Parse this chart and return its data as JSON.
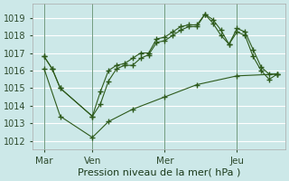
{
  "background_color": "#cce8e8",
  "grid_color": "#ffffff",
  "line_color": "#2d5a1b",
  "title": "Pression niveau de la mer( hPa )",
  "xlim": [
    -0.2,
    15.5
  ],
  "ylim": [
    1011.5,
    1019.8
  ],
  "yticks": [
    1012,
    1013,
    1014,
    1015,
    1016,
    1017,
    1018,
    1019
  ],
  "xtick_positions": [
    0.5,
    3.5,
    8.0,
    12.5
  ],
  "xtick_labels": [
    "Mar",
    "Ven",
    "Mer",
    "Jeu"
  ],
  "vlines": [
    0.5,
    3.5,
    8.0,
    12.5
  ],
  "line_upper_x": [
    0.5,
    1.0,
    1.5,
    3.5,
    4.0,
    4.5,
    5.0,
    5.5,
    6.0,
    6.5,
    7.0,
    7.5,
    8.0,
    8.5,
    9.0,
    9.5,
    10.0,
    10.5,
    11.0,
    11.5,
    12.0,
    12.5,
    13.0,
    13.5,
    14.0,
    14.5,
    15.0
  ],
  "line_upper_y": [
    1016.8,
    1016.1,
    1015.0,
    1013.4,
    1014.8,
    1016.0,
    1016.3,
    1016.4,
    1016.7,
    1017.0,
    1017.0,
    1017.8,
    1017.9,
    1018.2,
    1018.5,
    1018.6,
    1018.6,
    1019.2,
    1018.9,
    1018.3,
    1017.5,
    1018.4,
    1018.2,
    1017.2,
    1016.2,
    1015.8,
    1015.8
  ],
  "line_mid_x": [
    0.5,
    1.0,
    1.5,
    3.5,
    4.0,
    4.5,
    5.0,
    5.5,
    6.0,
    6.5,
    7.0,
    7.5,
    8.0,
    8.5,
    9.0,
    9.5,
    10.0,
    10.5,
    11.0,
    11.5,
    12.0,
    12.5,
    13.0,
    13.5,
    14.0,
    14.5,
    15.0
  ],
  "line_mid_y": [
    1016.8,
    1016.1,
    1015.0,
    1013.4,
    1014.1,
    1015.4,
    1016.1,
    1016.3,
    1016.3,
    1016.7,
    1016.9,
    1017.6,
    1017.7,
    1018.0,
    1018.3,
    1018.5,
    1018.5,
    1019.2,
    1018.7,
    1018.0,
    1017.5,
    1018.2,
    1018.0,
    1016.8,
    1016.0,
    1015.5,
    1015.8
  ],
  "line_low_x": [
    0.5,
    1.5,
    3.5,
    4.5,
    6.0,
    8.0,
    10.0,
    12.5,
    15.0
  ],
  "line_low_y": [
    1016.1,
    1013.4,
    1012.2,
    1013.1,
    1013.8,
    1014.5,
    1015.2,
    1015.7,
    1015.8
  ]
}
